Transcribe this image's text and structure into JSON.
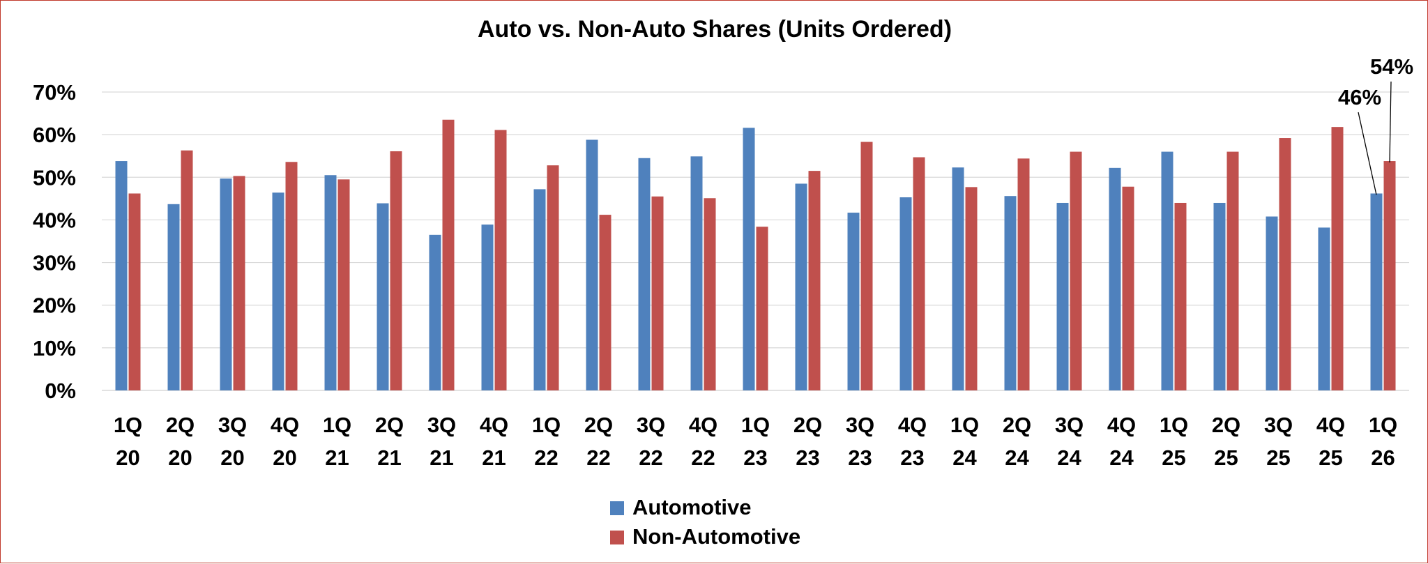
{
  "chart_data": {
    "type": "bar",
    "title": "Auto vs. Non-Auto Shares (Units Ordered)",
    "xlabel": "",
    "ylabel": "",
    "ylim": [
      0,
      70
    ],
    "yticks": [
      0,
      10,
      20,
      30,
      40,
      50,
      60,
      70
    ],
    "ytick_labels": [
      "0%",
      "10%",
      "20%",
      "30%",
      "40%",
      "50%",
      "60%",
      "70%"
    ],
    "grid": true,
    "legend_position": "bottom-center",
    "categories": [
      [
        "1Q",
        "20"
      ],
      [
        "2Q",
        "20"
      ],
      [
        "3Q",
        "20"
      ],
      [
        "4Q",
        "20"
      ],
      [
        "1Q",
        "21"
      ],
      [
        "2Q",
        "21"
      ],
      [
        "3Q",
        "21"
      ],
      [
        "4Q",
        "21"
      ],
      [
        "1Q",
        "22"
      ],
      [
        "2Q",
        "22"
      ],
      [
        "3Q",
        "22"
      ],
      [
        "4Q",
        "22"
      ],
      [
        "1Q",
        "23"
      ],
      [
        "2Q",
        "23"
      ],
      [
        "3Q",
        "23"
      ],
      [
        "4Q",
        "23"
      ],
      [
        "1Q",
        "24"
      ],
      [
        "2Q",
        "24"
      ],
      [
        "3Q",
        "24"
      ],
      [
        "4Q",
        "24"
      ],
      [
        "1Q",
        "25"
      ],
      [
        "2Q",
        "25"
      ],
      [
        "3Q",
        "25"
      ],
      [
        "4Q",
        "25"
      ],
      [
        "1Q",
        "26"
      ]
    ],
    "series": [
      {
        "name": "Automotive",
        "color": "#4f81bd",
        "values": [
          53.8,
          43.7,
          49.7,
          46.4,
          50.5,
          43.9,
          36.5,
          38.9,
          47.2,
          58.8,
          54.5,
          54.9,
          61.6,
          48.5,
          41.7,
          45.3,
          52.3,
          45.6,
          44.0,
          52.2,
          56.0,
          44.0,
          40.8,
          38.2,
          46.2
        ]
      },
      {
        "name": "Non-Automotive",
        "color": "#c0504d",
        "values": [
          46.2,
          56.3,
          50.3,
          53.6,
          49.5,
          56.1,
          63.5,
          61.1,
          52.8,
          41.2,
          45.5,
          45.1,
          38.4,
          51.5,
          58.3,
          54.7,
          47.7,
          54.4,
          56.0,
          47.8,
          44.0,
          56.0,
          59.2,
          61.8,
          53.8
        ]
      }
    ],
    "annotations": [
      {
        "text": "46%",
        "series": "Automotive",
        "category_index": 24
      },
      {
        "text": "54%",
        "series": "Non-Automotive",
        "category_index": 24
      }
    ]
  }
}
